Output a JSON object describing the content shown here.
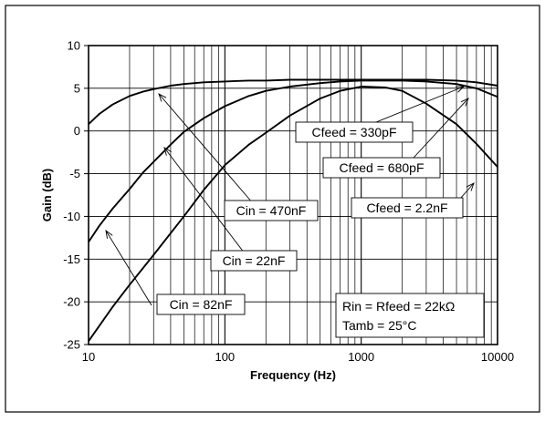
{
  "chart_data": {
    "type": "line",
    "xlabel": "Frequency (Hz)",
    "ylabel": "Gain (dB)",
    "x_scale": "log",
    "xlim": [
      10,
      10000
    ],
    "ylim": [
      -25,
      10
    ],
    "x_ticks": [
      10,
      100,
      1000,
      10000
    ],
    "x_tick_labels": [
      "10",
      "100",
      "1000",
      "10000"
    ],
    "y_ticks": [
      10,
      5,
      0,
      -5,
      -10,
      -15,
      -20,
      -25
    ],
    "y_tick_labels": [
      "10",
      "5",
      "0",
      "-5",
      "-10",
      "-15",
      "-20",
      "-25"
    ],
    "grid": true,
    "series": [
      {
        "x": [
          10,
          12,
          15,
          20,
          25,
          30,
          40,
          50,
          70,
          100,
          150,
          200,
          300,
          500,
          700,
          1000,
          1500,
          2000,
          3000,
          5000,
          7000,
          10000
        ],
        "y": [
          0.8,
          2.0,
          3.1,
          4.1,
          4.6,
          4.9,
          5.3,
          5.5,
          5.7,
          5.8,
          5.9,
          5.9,
          6.0,
          6.0,
          6.0,
          6.0,
          6.0,
          6.0,
          6.0,
          5.9,
          5.7,
          5.3
        ]
      },
      {
        "x": [
          10,
          12,
          15,
          20,
          25,
          30,
          40,
          50,
          70,
          100,
          150,
          200,
          300,
          500,
          700,
          1000,
          1500,
          2000,
          3000,
          5000,
          7000,
          10000
        ],
        "y": [
          -13.0,
          -11.1,
          -9.1,
          -6.8,
          -4.9,
          -3.6,
          -1.6,
          -0.1,
          1.5,
          2.9,
          4.1,
          4.7,
          5.2,
          5.6,
          5.8,
          5.9,
          5.9,
          5.9,
          5.8,
          5.5,
          5.0,
          4.0
        ]
      },
      {
        "x": [
          10,
          15,
          20,
          30,
          50,
          70,
          100,
          150,
          200,
          300,
          500,
          700,
          1000,
          1500,
          2000,
          3000,
          5000,
          7000,
          10000
        ],
        "y": [
          -24.6,
          -20.6,
          -18.0,
          -14.5,
          -10.0,
          -6.9,
          -4.0,
          -1.6,
          -0.2,
          1.8,
          3.8,
          4.7,
          5.2,
          5.1,
          4.7,
          3.2,
          0.8,
          -1.5,
          -4.2
        ]
      }
    ],
    "annotations": [
      {
        "text": "Cfeed = 330pF"
      },
      {
        "text": "Cfeed = 680pF"
      },
      {
        "text": "Cfeed = 2.2nF"
      },
      {
        "text": "Cin = 470nF"
      },
      {
        "text": "Cin = 22nF"
      },
      {
        "text": "Cin = 82nF"
      },
      {
        "text": "Rin = Rfeed = 22kΩ"
      },
      {
        "text": "Tamb = 25°C"
      }
    ]
  }
}
